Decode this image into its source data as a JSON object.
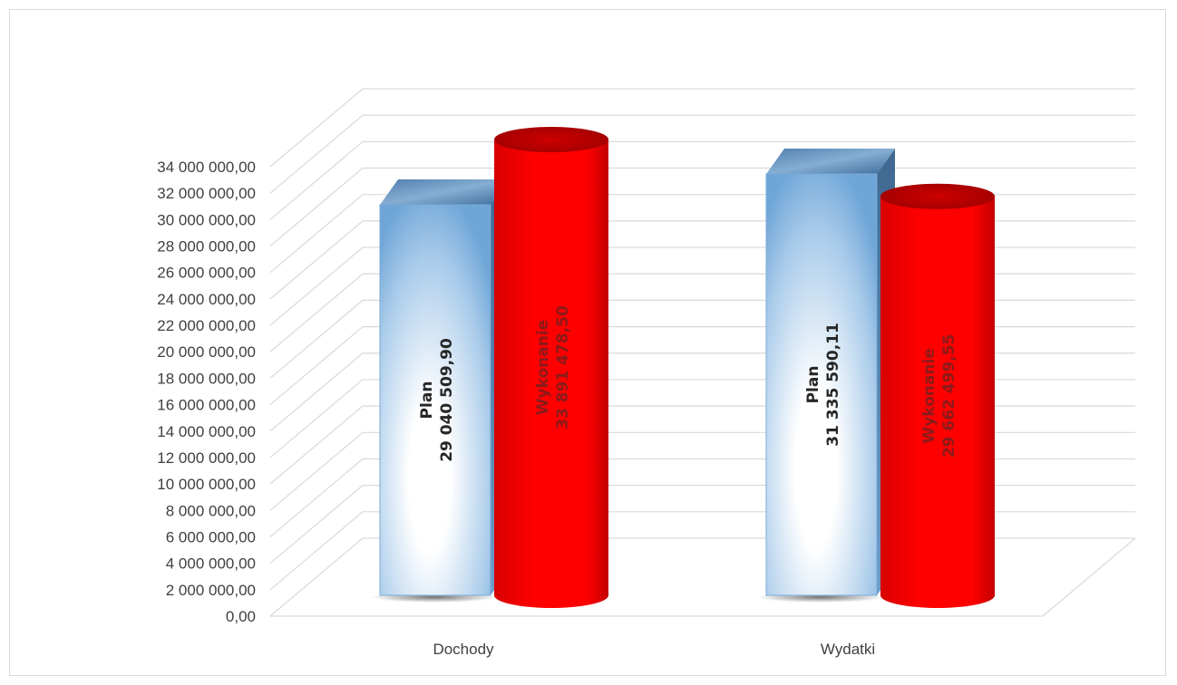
{
  "chart_data": {
    "type": "bar",
    "style": "3d-column",
    "categories": [
      "Dochody",
      "Wydatki"
    ],
    "series": [
      {
        "name": "Plan",
        "shape": "box",
        "color": "#6fa8dc",
        "values": [
          29040509.9,
          31335590.11
        ],
        "labels": [
          "29 040 509,90",
          "31 335 590,11"
        ]
      },
      {
        "name": "Wykonanie",
        "shape": "cylinder",
        "color": "#ff0000",
        "values": [
          33891478.5,
          29662499.55
        ],
        "labels": [
          "33 891 478,50",
          "29 662 499,55"
        ]
      }
    ],
    "ylim": [
      0,
      34000000
    ],
    "y_ticks": [
      "0,00",
      "2 000 000,00",
      "4 000 000,00",
      "6 000 000,00",
      "8 000 000,00",
      "10 000 000,00",
      "12 000 000,00",
      "14 000 000,00",
      "16 000 000,00",
      "18 000 000,00",
      "20 000 000,00",
      "22 000 000,00",
      "24 000 000,00",
      "26 000 000,00",
      "28 000 000,00",
      "30 000 000,00",
      "32 000 000,00",
      "34 000 000,00"
    ],
    "grid": true,
    "legend": "none"
  }
}
